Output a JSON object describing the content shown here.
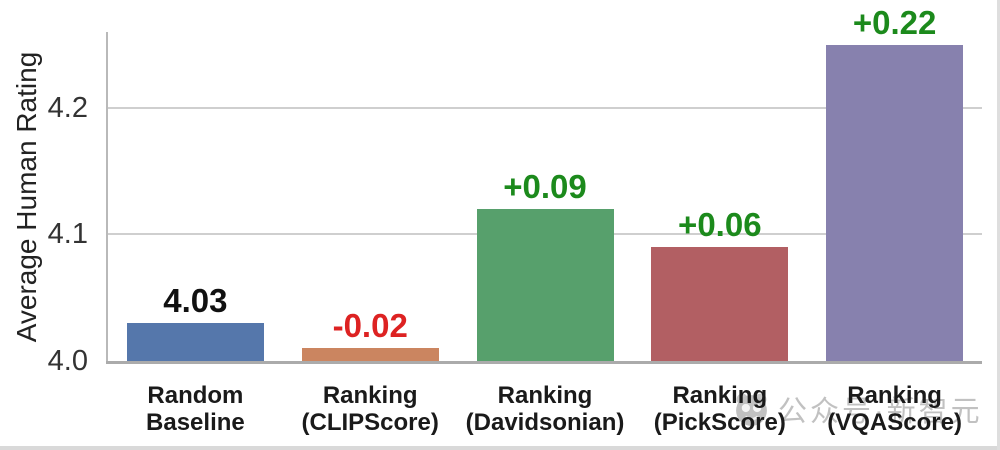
{
  "chart_data": {
    "type": "bar",
    "title": "",
    "ylabel": "Average Human Rating",
    "xlabel": "",
    "ylim": [
      4.0,
      4.26
    ],
    "yticks": [
      4.0,
      4.1,
      4.2
    ],
    "ytick_labels": [
      "4.0",
      "4.1",
      "4.2"
    ],
    "grid": "horizontal",
    "legend": null,
    "categories": [
      "Random\nBaseline",
      "Ranking\n(CLIPScore)",
      "Ranking\n(Davidsonian)",
      "Ranking\n(PickScore)",
      "Ranking\n(VQAScore)"
    ],
    "values": [
      4.03,
      4.01,
      4.12,
      4.09,
      4.25
    ],
    "bar_colors": [
      "#5577ab",
      "#cb8560",
      "#57a06c",
      "#b25f63",
      "#8781ae"
    ],
    "annotations": [
      {
        "text": "4.03",
        "color": "#111111"
      },
      {
        "text": "-0.02",
        "color": "#dd2222"
      },
      {
        "text": "+0.09",
        "color": "#1c8a1c"
      },
      {
        "text": "+0.06",
        "color": "#1c8a1c"
      },
      {
        "text": "+0.22",
        "color": "#1c8a1c"
      }
    ]
  },
  "watermark": {
    "text": "公众号·新智元",
    "logo": "panda-face-logo-icon"
  },
  "style": {
    "background": "#ffffff",
    "grid_color": "#cfcfcf",
    "axis_color": "#b9b9b9",
    "baseline_color": "#ababab",
    "tick_color": "#333333",
    "label_color": "#1a1a1a"
  }
}
